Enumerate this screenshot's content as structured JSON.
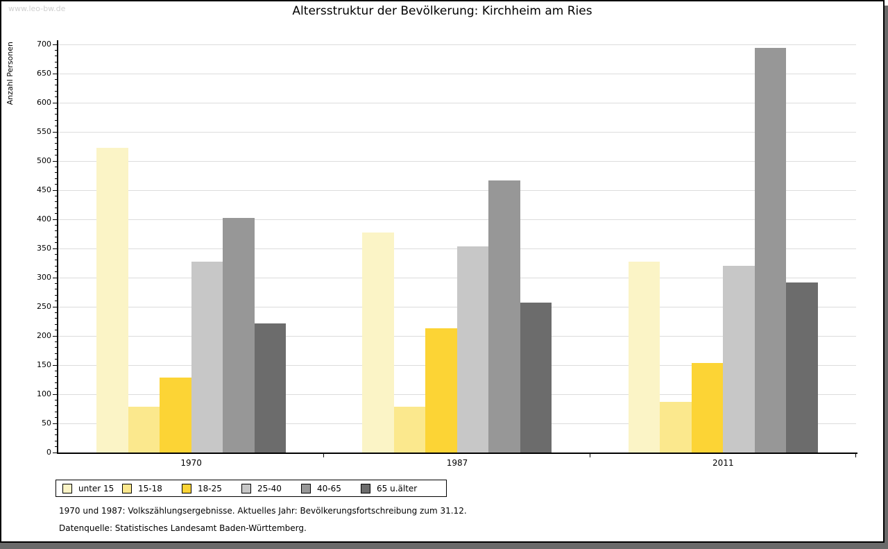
{
  "watermark": "www.leo-bw.de",
  "title": "Altersstruktur der Bevölkerung: Kirchheim am Ries",
  "chart_data": {
    "type": "bar",
    "title": "Altersstruktur der Bevölkerung: Kirchheim am Ries",
    "xlabel": "",
    "ylabel": "Anzahl Personen",
    "categories": [
      "1970",
      "1987",
      "2011"
    ],
    "series": [
      {
        "name": "unter 15",
        "color": "#FBF4C6",
        "values": [
          523,
          377,
          327
        ]
      },
      {
        "name": "15-18",
        "color": "#FBE88D",
        "values": [
          78,
          79,
          87
        ]
      },
      {
        "name": "18-25",
        "color": "#FCD435",
        "values": [
          128,
          213,
          153
        ]
      },
      {
        "name": "25-40",
        "color": "#C7C7C7",
        "values": [
          327,
          353,
          320
        ]
      },
      {
        "name": "40-65",
        "color": "#979797",
        "values": [
          402,
          467,
          694
        ]
      },
      {
        "name": "65 u.älter",
        "color": "#6C6C6C",
        "values": [
          222,
          257,
          292
        ]
      }
    ],
    "ylim": [
      0,
      700
    ],
    "ytick_step": 50,
    "minor_tick_step": 10,
    "grid": true,
    "legend_position": "bottom"
  },
  "footnotes": [
    "1970 und 1987: Volkszählungsergebnisse. Aktuelles Jahr: Bevölkerungsfortschreibung zum 31.12.",
    "Datenquelle: Statistisches Landesamt Baden-Württemberg."
  ],
  "colors": {
    "gridline": "#dcdcdc",
    "axis": "#000000",
    "shadow": "#6a6a6a",
    "watermark_text": "#cfcfcf"
  }
}
